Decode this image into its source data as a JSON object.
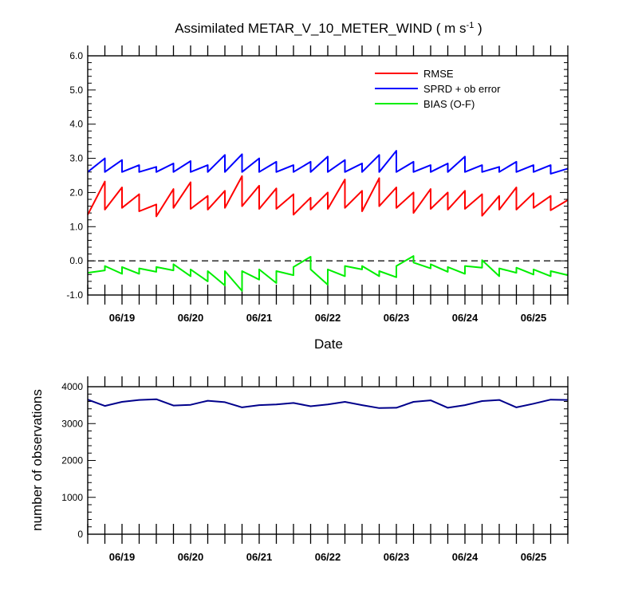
{
  "chart_data": [
    {
      "type": "line",
      "title": "Assimilated METAR_V_10_METER_WIND ( m s",
      "title_sup": "-1",
      "title_end": " )",
      "xlabel": "Date",
      "ylabel": "",
      "ylim": [
        -1.0,
        6.0
      ],
      "yticks": [
        "6.0",
        "5.0",
        "4.0",
        "3.0",
        "2.0",
        "1.0",
        "0.0",
        "-1.0"
      ],
      "yticks_values": [
        6,
        5,
        4,
        3,
        2,
        1,
        0,
        -1
      ],
      "xlim": [
        0,
        28
      ],
      "date_ticks": [
        "06/19",
        "06/20",
        "06/21",
        "06/22",
        "06/23",
        "06/24",
        "06/25"
      ],
      "date_tick_x": [
        2,
        6,
        10,
        14,
        18,
        22,
        26
      ],
      "zero_line": "dashed",
      "legend": "top-right",
      "series": [
        {
          "name": "RMSE",
          "color": "#ff0000",
          "x": [
            0,
            1,
            1,
            2,
            2,
            3,
            3,
            4,
            4,
            5,
            5,
            6,
            6,
            7,
            7,
            8,
            8,
            9,
            9,
            10,
            10,
            11,
            11,
            12,
            12,
            13,
            13,
            14,
            14,
            15,
            15,
            16,
            16,
            17,
            17,
            18,
            18,
            19,
            19,
            20,
            20,
            21,
            21,
            22,
            22,
            23,
            23,
            24,
            24,
            25,
            25,
            26,
            26,
            27,
            27,
            28
          ],
          "y": [
            1.35,
            2.32,
            1.5,
            2.15,
            1.55,
            1.95,
            1.45,
            1.65,
            1.3,
            2.1,
            1.55,
            2.3,
            1.52,
            1.9,
            1.5,
            2.05,
            1.55,
            2.48,
            1.6,
            2.2,
            1.52,
            2.12,
            1.52,
            1.95,
            1.35,
            1.85,
            1.5,
            2.0,
            1.52,
            2.38,
            1.55,
            2.05,
            1.45,
            2.42,
            1.6,
            2.15,
            1.55,
            2.0,
            1.4,
            2.1,
            1.52,
            2.0,
            1.5,
            2.05,
            1.52,
            1.95,
            1.32,
            1.9,
            1.5,
            2.15,
            1.5,
            1.98,
            1.55,
            1.9,
            1.48,
            1.78
          ]
        },
        {
          "name": "SPRD + ob error",
          "color": "#0000ff",
          "x": [
            0,
            1,
            1,
            2,
            2,
            3,
            3,
            4,
            4,
            5,
            5,
            6,
            6,
            7,
            7,
            8,
            8,
            9,
            9,
            10,
            10,
            11,
            11,
            12,
            12,
            13,
            13,
            14,
            14,
            15,
            15,
            16,
            16,
            17,
            17,
            18,
            18,
            19,
            19,
            20,
            20,
            21,
            21,
            22,
            22,
            23,
            23,
            24,
            24,
            25,
            25,
            26,
            26,
            27,
            27,
            28
          ],
          "y": [
            2.6,
            3.0,
            2.6,
            2.95,
            2.6,
            2.8,
            2.6,
            2.75,
            2.6,
            2.85,
            2.6,
            2.92,
            2.6,
            2.8,
            2.6,
            3.1,
            2.6,
            3.12,
            2.6,
            3.0,
            2.6,
            2.9,
            2.6,
            2.8,
            2.6,
            2.9,
            2.6,
            3.05,
            2.6,
            2.95,
            2.6,
            2.85,
            2.6,
            3.1,
            2.6,
            3.22,
            2.6,
            2.9,
            2.6,
            2.8,
            2.6,
            2.85,
            2.6,
            3.05,
            2.6,
            2.8,
            2.6,
            2.75,
            2.6,
            2.9,
            2.6,
            2.8,
            2.6,
            2.8,
            2.55,
            2.7
          ]
        },
        {
          "name": "BIAS (O-F)",
          "color": "#00ee00",
          "x": [
            0,
            1,
            1,
            2,
            2,
            3,
            3,
            4,
            4,
            5,
            5,
            6,
            6,
            7,
            7,
            8,
            8,
            9,
            9,
            10,
            10,
            11,
            11,
            12,
            12,
            13,
            13,
            14,
            14,
            15,
            15,
            16,
            16,
            17,
            17,
            18,
            18,
            19,
            19,
            20,
            20,
            21,
            21,
            22,
            22,
            23,
            23,
            24,
            24,
            25,
            25,
            26,
            26,
            27,
            27,
            28
          ],
          "y": [
            -0.35,
            -0.28,
            -0.15,
            -0.38,
            -0.18,
            -0.38,
            -0.22,
            -0.32,
            -0.18,
            -0.28,
            -0.1,
            -0.45,
            -0.25,
            -0.6,
            -0.3,
            -0.72,
            -0.3,
            -0.88,
            -0.3,
            -0.55,
            -0.25,
            -0.65,
            -0.3,
            -0.42,
            -0.18,
            0.12,
            -0.25,
            -0.7,
            -0.25,
            -0.45,
            -0.15,
            -0.25,
            -0.15,
            -0.45,
            -0.3,
            -0.48,
            -0.15,
            0.14,
            -0.05,
            -0.22,
            -0.1,
            -0.32,
            -0.18,
            -0.38,
            -0.15,
            -0.2,
            0.02,
            -0.45,
            -0.22,
            -0.35,
            -0.2,
            -0.4,
            -0.25,
            -0.45,
            -0.3,
            -0.42
          ]
        }
      ]
    },
    {
      "type": "line",
      "title": "",
      "xlabel": "",
      "ylabel": "number of observations",
      "ylim": [
        0,
        4000
      ],
      "yticks": [
        "4000",
        "3000",
        "2000",
        "1000",
        "0"
      ],
      "yticks_values": [
        4000,
        3000,
        2000,
        1000,
        0
      ],
      "xlim": [
        0,
        28
      ],
      "date_ticks": [
        "06/19",
        "06/20",
        "06/21",
        "06/22",
        "06/23",
        "06/24",
        "06/25"
      ],
      "date_tick_x": [
        2,
        6,
        10,
        14,
        18,
        22,
        26
      ],
      "series": [
        {
          "color": "#00008b",
          "x": [
            0,
            1,
            2,
            3,
            4,
            5,
            6,
            7,
            8,
            9,
            10,
            11,
            12,
            13,
            14,
            15,
            16,
            17,
            18,
            19,
            20,
            21,
            22,
            23,
            24,
            25,
            26,
            27,
            28
          ],
          "y": [
            3650,
            3480,
            3590,
            3640,
            3660,
            3490,
            3510,
            3620,
            3580,
            3440,
            3500,
            3520,
            3560,
            3470,
            3520,
            3590,
            3500,
            3420,
            3430,
            3590,
            3630,
            3430,
            3500,
            3610,
            3640,
            3440,
            3540,
            3650,
            3640
          ]
        }
      ]
    }
  ]
}
